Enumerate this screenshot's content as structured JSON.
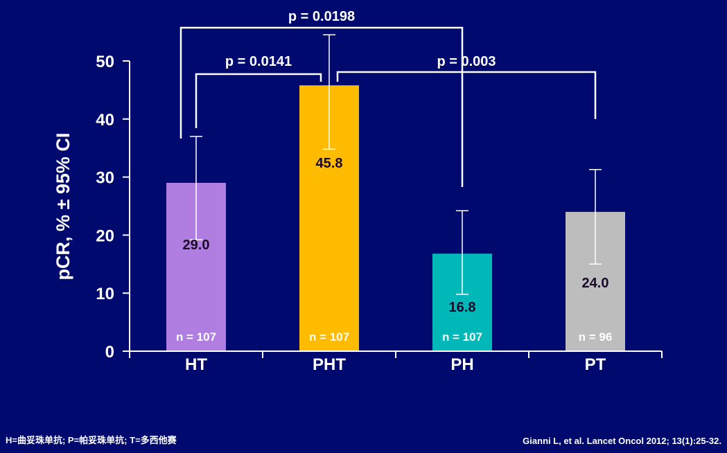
{
  "chart_data": {
    "type": "bar",
    "categories": [
      "HT",
      "PHT",
      "PH",
      "PT"
    ],
    "values": [
      29.0,
      45.8,
      16.8,
      24.0
    ],
    "value_labels": [
      "29.0",
      "45.8",
      "16.8",
      "24.0"
    ],
    "ci_low": [
      19.2,
      34.8,
      9.8,
      15.0
    ],
    "ci_high": [
      37.0,
      54.5,
      24.2,
      31.3
    ],
    "n_labels": [
      "n = 107",
      "n = 107",
      "n = 107",
      "n = 96"
    ],
    "bar_colors": [
      "#b07ee0",
      "#ffbb00",
      "#00b8b8",
      "#bdbdbd"
    ],
    "ylabel": "pCR, % ± 95% CI",
    "ylim": [
      0,
      50
    ],
    "yticks": [
      0,
      10,
      20,
      30,
      40,
      50
    ],
    "grid": false,
    "brackets": [
      {
        "from": "HT",
        "to": "PH",
        "label": "p = 0.0198"
      },
      {
        "from": "HT",
        "to": "PHT",
        "label": "p = 0.0141"
      },
      {
        "from": "PHT",
        "to": "PT",
        "label": "p = 0.003"
      }
    ]
  },
  "colors": {
    "background": "#000a6e",
    "axis": "#ffffff",
    "value_label": "#1a0a2a",
    "text": "#ffffff"
  },
  "footnotes": {
    "left": "H=曲妥珠单抗; P=帕妥珠单抗; T=多西他赛",
    "right": "Gianni L, et al. Lancet Oncol 2012; 13(1):25-32."
  }
}
